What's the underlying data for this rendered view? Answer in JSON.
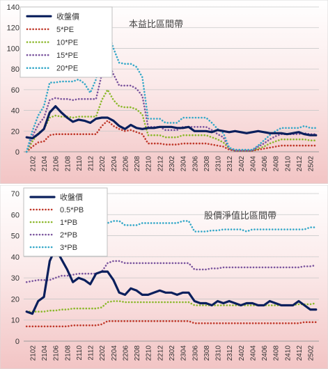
{
  "chart_data": [
    {
      "type": "line",
      "title": "本益比區間帶",
      "ylim": [
        0,
        140
      ],
      "yticks": [
        0,
        20,
        40,
        60,
        80,
        100,
        120,
        140
      ],
      "categories": [
        "2101",
        "2102",
        "2103",
        "2104",
        "2105",
        "2106",
        "2107",
        "2108",
        "2109",
        "2110",
        "2111",
        "2112",
        "2201",
        "2202",
        "2203",
        "2204",
        "2205",
        "2206",
        "2207",
        "2208",
        "2209",
        "2210",
        "2211",
        "2212",
        "2301",
        "2302",
        "2303",
        "2304",
        "2305",
        "2306",
        "2307",
        "2308",
        "2309",
        "2310",
        "2311",
        "2312",
        "2401",
        "2402",
        "2403",
        "2404",
        "2405",
        "2406",
        "2407",
        "2408",
        "2409",
        "2410",
        "2411",
        "2412",
        "2501",
        "2502",
        "2503"
      ],
      "x_tick_labels": [
        "2102",
        "2104",
        "2106",
        "2108",
        "2110",
        "2112",
        "2202",
        "2204",
        "2206",
        "2208",
        "2210",
        "2212",
        "2302",
        "2304",
        "2306",
        "2308",
        "2310",
        "2312",
        "2402",
        "2404",
        "2406",
        "2408",
        "2410",
        "2412",
        "2502"
      ],
      "legend_position": "top-left",
      "series": [
        {
          "name": "收盤價",
          "color": "#0a1f5c",
          "style": "solid",
          "values": [
            14,
            13,
            17,
            22,
            38,
            44,
            38,
            33,
            29,
            31,
            30,
            28,
            32,
            33,
            33,
            30,
            25,
            22,
            26,
            23,
            22,
            23,
            23,
            24,
            24,
            24,
            23,
            23,
            24,
            20,
            20,
            20,
            19,
            21,
            20,
            19,
            20,
            19,
            18,
            19,
            20,
            19,
            18,
            18,
            18,
            17,
            18,
            19,
            17,
            16,
            16
          ]
        },
        {
          "name": "5*PE",
          "color": "#c0392b",
          "style": "dotted",
          "values": [
            0,
            5,
            9,
            10,
            16,
            17,
            17,
            17,
            17,
            17,
            17,
            17,
            17,
            25,
            30,
            25,
            22,
            20,
            21,
            19,
            17,
            8,
            8,
            8,
            7,
            7,
            7,
            8,
            8,
            8,
            8,
            8,
            7,
            6,
            5,
            2,
            1,
            1,
            1,
            1,
            2,
            3,
            4,
            5,
            6,
            6,
            6,
            6,
            6,
            6,
            6
          ]
        },
        {
          "name": "10*PE",
          "color": "#8cb82c",
          "style": "dotted",
          "values": [
            0,
            10,
            18,
            22,
            33,
            35,
            34,
            34,
            33,
            34,
            34,
            34,
            34,
            50,
            60,
            50,
            44,
            43,
            43,
            41,
            36,
            16,
            16,
            16,
            14,
            14,
            14,
            16,
            16,
            16,
            16,
            16,
            14,
            12,
            9,
            3,
            1,
            1,
            1,
            1,
            3,
            5,
            8,
            10,
            12,
            12,
            12,
            12,
            12,
            11,
            11
          ]
        },
        {
          "name": "15*PE",
          "color": "#7b559e",
          "style": "dotted",
          "values": [
            0,
            15,
            26,
            33,
            50,
            52,
            51,
            51,
            50,
            51,
            51,
            51,
            51,
            75,
            88,
            75,
            64,
            64,
            64,
            61,
            54,
            24,
            24,
            24,
            21,
            21,
            21,
            24,
            24,
            24,
            24,
            24,
            21,
            17,
            14,
            3,
            1,
            1,
            1,
            1,
            5,
            8,
            12,
            15,
            17,
            17,
            17,
            17,
            18,
            17,
            17
          ]
        },
        {
          "name": "20*PE",
          "color": "#35a8c8",
          "style": "dotted",
          "values": [
            0,
            20,
            35,
            44,
            67,
            67,
            68,
            68,
            68,
            70,
            66,
            57,
            70,
            100,
            118,
            100,
            86,
            85,
            85,
            82,
            72,
            32,
            32,
            32,
            28,
            28,
            28,
            33,
            33,
            33,
            33,
            33,
            28,
            22,
            18,
            4,
            2,
            2,
            2,
            2,
            6,
            11,
            16,
            20,
            23,
            23,
            23,
            23,
            25,
            23,
            23
          ]
        }
      ]
    },
    {
      "type": "line",
      "title": "股價淨值比區間帶",
      "ylim": [
        0,
        70
      ],
      "yticks": [
        0,
        10,
        20,
        30,
        40,
        50,
        60,
        70
      ],
      "categories": [
        "2101",
        "2102",
        "2103",
        "2104",
        "2105",
        "2106",
        "2107",
        "2108",
        "2109",
        "2110",
        "2111",
        "2112",
        "2201",
        "2202",
        "2203",
        "2204",
        "2205",
        "2206",
        "2207",
        "2208",
        "2209",
        "2210",
        "2211",
        "2212",
        "2301",
        "2302",
        "2303",
        "2304",
        "2305",
        "2306",
        "2307",
        "2308",
        "2309",
        "2310",
        "2311",
        "2312",
        "2401",
        "2402",
        "2403",
        "2404",
        "2405",
        "2406",
        "2407",
        "2408",
        "2409",
        "2410",
        "2411",
        "2412",
        "2501",
        "2502",
        "2503"
      ],
      "x_tick_labels": [
        "2102",
        "2104",
        "2106",
        "2108",
        "2110",
        "2112",
        "2202",
        "2204",
        "2206",
        "2208",
        "2210",
        "2212",
        "2302",
        "2304",
        "2306",
        "2308",
        "2310",
        "2312",
        "2402",
        "2404",
        "2406",
        "2408",
        "2410",
        "2412",
        "2502"
      ],
      "legend_position": "top-left",
      "series": [
        {
          "name": "收盤價",
          "color": "#0a1f5c",
          "style": "solid",
          "values": [
            14,
            13,
            19,
            21,
            38,
            44,
            39,
            34,
            28,
            30,
            29,
            27,
            32,
            33,
            33,
            29,
            23,
            22,
            25,
            24,
            22,
            22,
            23,
            24,
            23,
            23,
            22,
            23,
            23,
            19,
            18,
            18,
            17,
            19,
            18,
            19,
            18,
            17,
            18,
            18,
            17,
            17,
            19,
            18,
            17,
            17,
            17,
            19,
            17,
            15,
            15
          ]
        },
        {
          "name": "0.5*PB",
          "color": "#c0392b",
          "style": "dotted",
          "values": [
            7,
            7,
            7,
            7,
            7,
            7,
            7,
            7,
            7.5,
            7.5,
            7.5,
            7.5,
            7.5,
            8,
            9.5,
            9.5,
            9.5,
            9.5,
            9.5,
            9.5,
            9.5,
            9.5,
            9.5,
            9.5,
            9.5,
            9.5,
            9.5,
            9.5,
            9.5,
            8.5,
            8.5,
            8.5,
            8.5,
            8.5,
            8.5,
            8.5,
            8.5,
            8.5,
            8.5,
            8.5,
            8.5,
            8.5,
            8.5,
            8.5,
            8.5,
            8.5,
            8.5,
            8.5,
            9,
            9,
            9
          ]
        },
        {
          "name": "1*PB",
          "color": "#8cb82c",
          "style": "dotted",
          "values": [
            14,
            14,
            14,
            14,
            14.5,
            14.5,
            15,
            15,
            15.5,
            15.5,
            15.5,
            15.5,
            15.5,
            16,
            18.5,
            19,
            19,
            18.5,
            18.5,
            18.5,
            18.5,
            18.5,
            18.5,
            18.5,
            18.5,
            18.5,
            18.5,
            18.5,
            18.5,
            17,
            17,
            17,
            17,
            17,
            17,
            17,
            17,
            17,
            17,
            17,
            17,
            17,
            17,
            17,
            17,
            17,
            17,
            17.5,
            17.5,
            17.5,
            18
          ]
        },
        {
          "name": "2*PB",
          "color": "#7b559e",
          "style": "dotted",
          "values": [
            28,
            28.5,
            29,
            29,
            29,
            30,
            31,
            31,
            31.5,
            32,
            32,
            32,
            32,
            33,
            37,
            38,
            38,
            37,
            37,
            37,
            37,
            37,
            37,
            37,
            37,
            37,
            37,
            37,
            37,
            34,
            34,
            34,
            34.5,
            34.5,
            35,
            35,
            35,
            35,
            35,
            35,
            35,
            35,
            35,
            35,
            35,
            35,
            35,
            35,
            35.5,
            35.5,
            36
          ]
        },
        {
          "name": "3*PB",
          "color": "#35a8c8",
          "style": "dotted",
          "values": [
            42,
            43,
            44,
            44,
            45,
            46,
            47,
            47,
            48,
            48,
            48,
            48,
            48,
            52,
            56,
            57,
            57,
            55,
            55,
            55,
            56,
            56,
            56,
            56,
            56,
            56,
            56,
            57,
            57,
            52,
            52,
            52,
            52.5,
            52.5,
            53,
            53,
            53,
            53,
            52,
            53,
            53,
            53,
            53,
            53,
            53,
            53,
            53,
            53,
            53,
            54,
            54
          ]
        }
      ]
    }
  ]
}
